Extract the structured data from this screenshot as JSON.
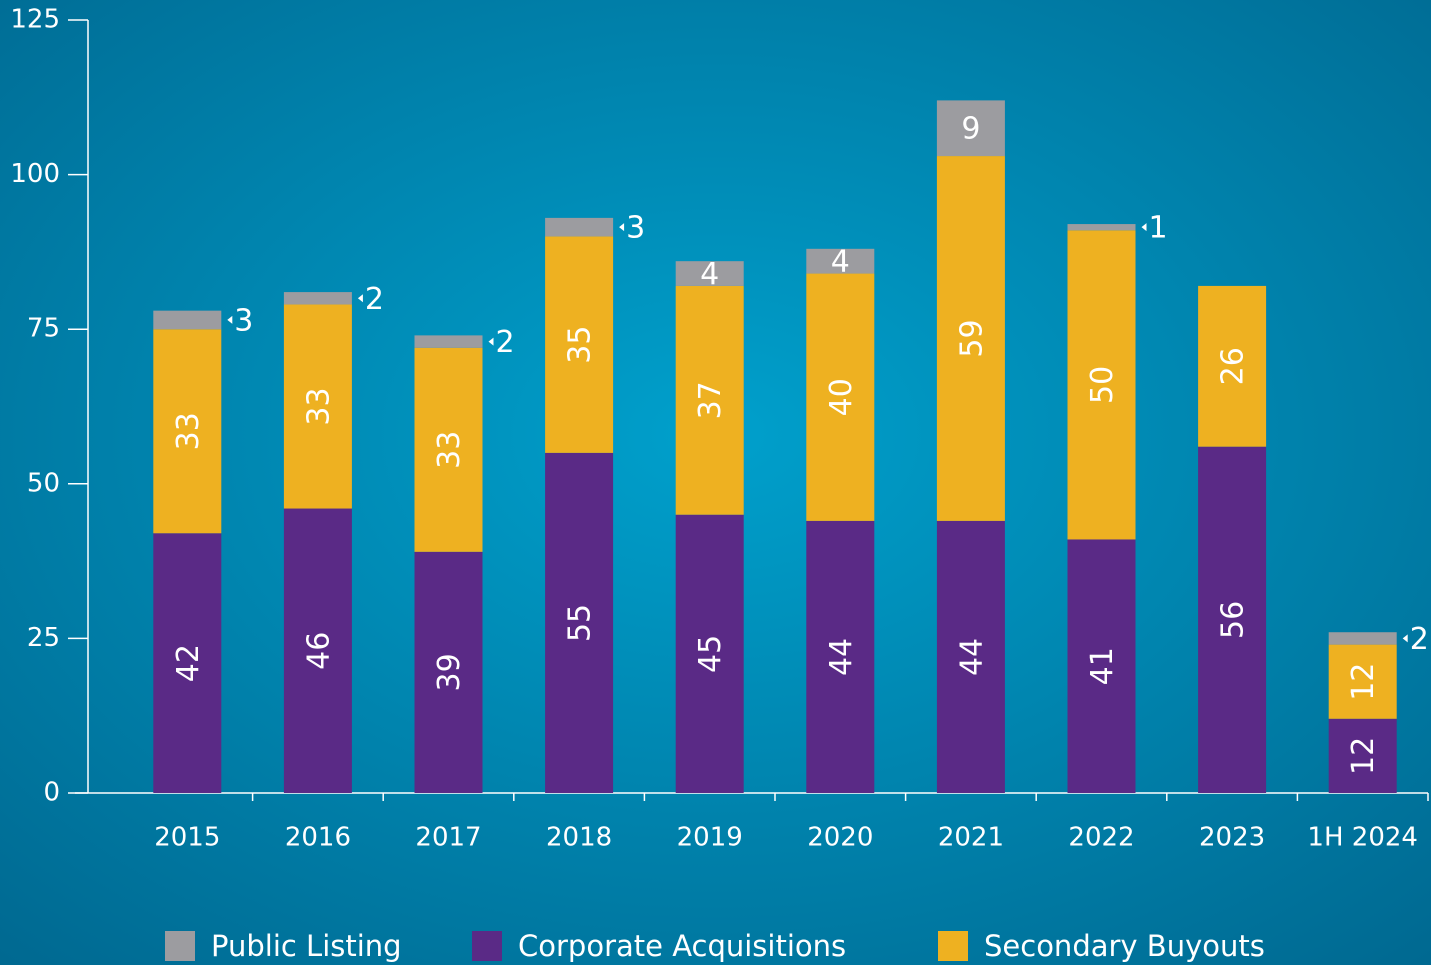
{
  "chart_data": {
    "type": "bar",
    "stacked": true,
    "categories": [
      "2015",
      "2016",
      "2017",
      "2018",
      "2019",
      "2020",
      "2021",
      "2022",
      "2023",
      "1H 2024"
    ],
    "series": [
      {
        "name": "Public Listing",
        "color": "#9c9ca0",
        "values": [
          3,
          2,
          2,
          3,
          4,
          4,
          9,
          1,
          null,
          2
        ]
      },
      {
        "name": "Corporate Acquisitions",
        "color": "#5a2a86",
        "values": [
          42,
          46,
          39,
          55,
          45,
          44,
          44,
          41,
          56,
          12
        ]
      },
      {
        "name": "Secondary Buyouts",
        "color": "#eeb121",
        "values": [
          33,
          33,
          33,
          35,
          37,
          40,
          59,
          50,
          26,
          12
        ]
      }
    ],
    "ylim": [
      0,
      125
    ],
    "yticks": [
      0,
      25,
      50,
      75,
      100,
      125
    ]
  }
}
